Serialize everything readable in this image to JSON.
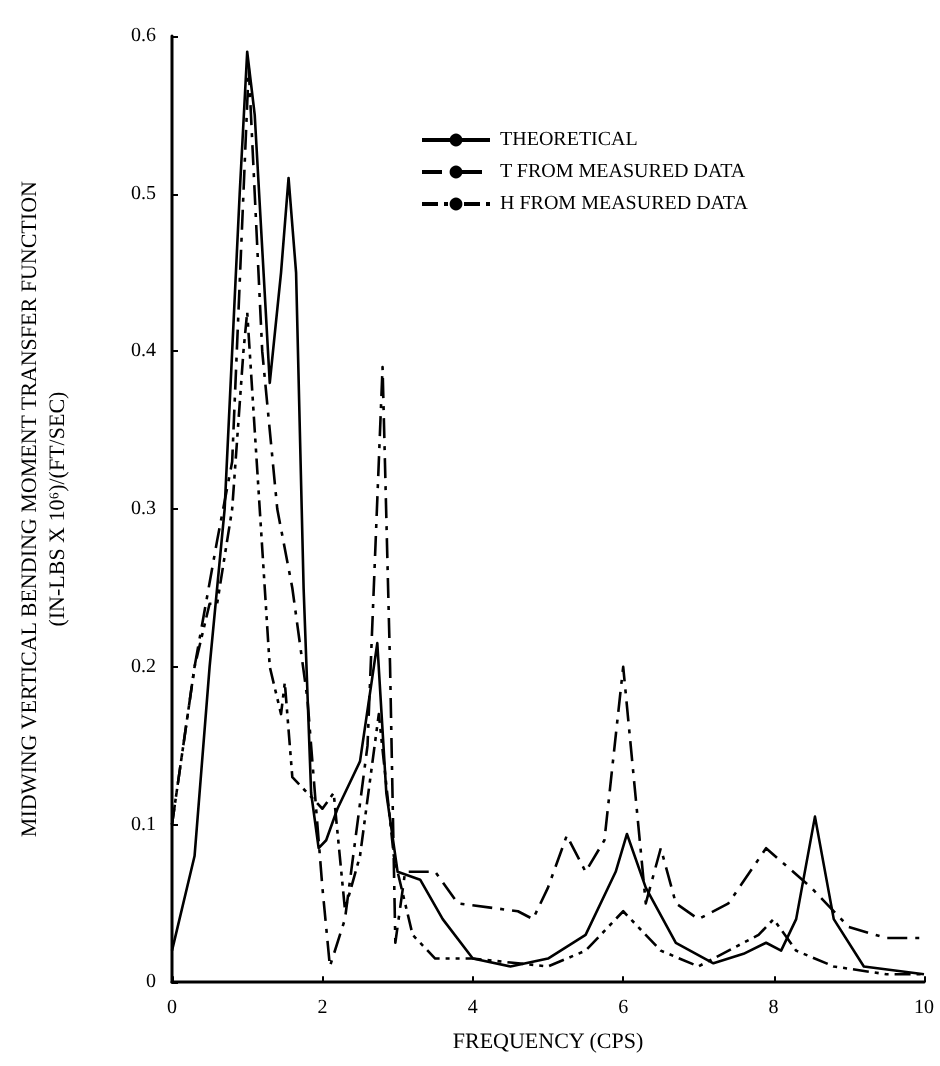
{
  "chart_data": {
    "type": "line",
    "xlabel": "FREQUENCY (CPS)",
    "ylabel": "MIDWING VERTICAL BENDING MOMENT TRANSFER FUNCTION\n(IN-LBS X 10⁶)/(FT/SEC)",
    "xlim": [
      0,
      10
    ],
    "ylim": [
      0,
      0.6
    ],
    "xticks": [
      0,
      2,
      4,
      6,
      8,
      10
    ],
    "yticks": [
      0,
      0.1,
      0.2,
      0.3,
      0.4,
      0.5,
      0.6
    ],
    "grid": false,
    "legend": "top right",
    "marker": "none",
    "series": [
      {
        "name": "THEORETICAL",
        "color": "#000000",
        "line_style": "solid",
        "x": [
          0,
          0.3,
          0.5,
          0.7,
          0.9,
          1.0,
          1.1,
          1.3,
          1.45,
          1.55,
          1.65,
          1.75,
          1.85,
          1.95,
          2.05,
          2.2,
          2.5,
          2.73,
          2.85,
          3.0,
          3.3,
          3.6,
          4.0,
          4.5,
          5.0,
          5.5,
          5.9,
          6.05,
          6.3,
          6.7,
          7.2,
          7.6,
          7.9,
          8.1,
          8.3,
          8.55,
          8.8,
          9.2,
          10
        ],
        "values": [
          0.02,
          0.08,
          0.2,
          0.3,
          0.5,
          0.59,
          0.55,
          0.38,
          0.45,
          0.51,
          0.45,
          0.25,
          0.12,
          0.085,
          0.09,
          0.11,
          0.14,
          0.215,
          0.12,
          0.07,
          0.065,
          0.04,
          0.015,
          0.01,
          0.015,
          0.03,
          0.07,
          0.094,
          0.06,
          0.025,
          0.012,
          0.018,
          0.025,
          0.02,
          0.04,
          0.105,
          0.04,
          0.01,
          0.005
        ]
      },
      {
        "name": "T FROM MEASURED DATA",
        "color": "#000000",
        "line_style": "dashed",
        "x": [
          0,
          0.3,
          0.6,
          0.8,
          0.95,
          1.02,
          1.1,
          1.2,
          1.4,
          1.6,
          1.8,
          2.0,
          2.1,
          2.3,
          2.6,
          2.8,
          2.9,
          2.97,
          3.1,
          3.5,
          3.8,
          4.6,
          4.8,
          5.0,
          5.25,
          5.5,
          5.75,
          6.0,
          6.3,
          6.5,
          6.7,
          7.0,
          7.4,
          7.9,
          8.5,
          9.0,
          9.5,
          10
        ],
        "values": [
          0.1,
          0.2,
          0.28,
          0.33,
          0.5,
          0.58,
          0.5,
          0.4,
          0.3,
          0.25,
          0.18,
          0.06,
          0.01,
          0.04,
          0.15,
          0.39,
          0.2,
          0.025,
          0.07,
          0.07,
          0.05,
          0.045,
          0.04,
          0.06,
          0.093,
          0.07,
          0.09,
          0.2,
          0.05,
          0.085,
          0.05,
          0.04,
          0.05,
          0.085,
          0.06,
          0.035,
          0.028,
          0.028
        ]
      },
      {
        "name": "H FROM MEASURED DATA",
        "color": "#000000",
        "line_style": "dotted",
        "x": [
          0,
          0.3,
          0.5,
          0.6,
          0.8,
          0.95,
          1.0,
          1.1,
          1.3,
          1.45,
          1.5,
          1.6,
          1.8,
          2.0,
          2.15,
          2.3,
          2.5,
          2.75,
          2.95,
          3.2,
          3.5,
          4.0,
          5.0,
          5.5,
          6.0,
          6.5,
          7.0,
          7.8,
          8.0,
          8.3,
          8.8,
          9.5,
          10
        ],
        "values": [
          0.1,
          0.2,
          0.24,
          0.24,
          0.3,
          0.4,
          0.425,
          0.35,
          0.2,
          0.17,
          0.19,
          0.13,
          0.12,
          0.11,
          0.12,
          0.046,
          0.08,
          0.17,
          0.08,
          0.03,
          0.015,
          0.015,
          0.01,
          0.02,
          0.045,
          0.02,
          0.01,
          0.03,
          0.04,
          0.02,
          0.01,
          0.005,
          0.005
        ]
      }
    ]
  }
}
